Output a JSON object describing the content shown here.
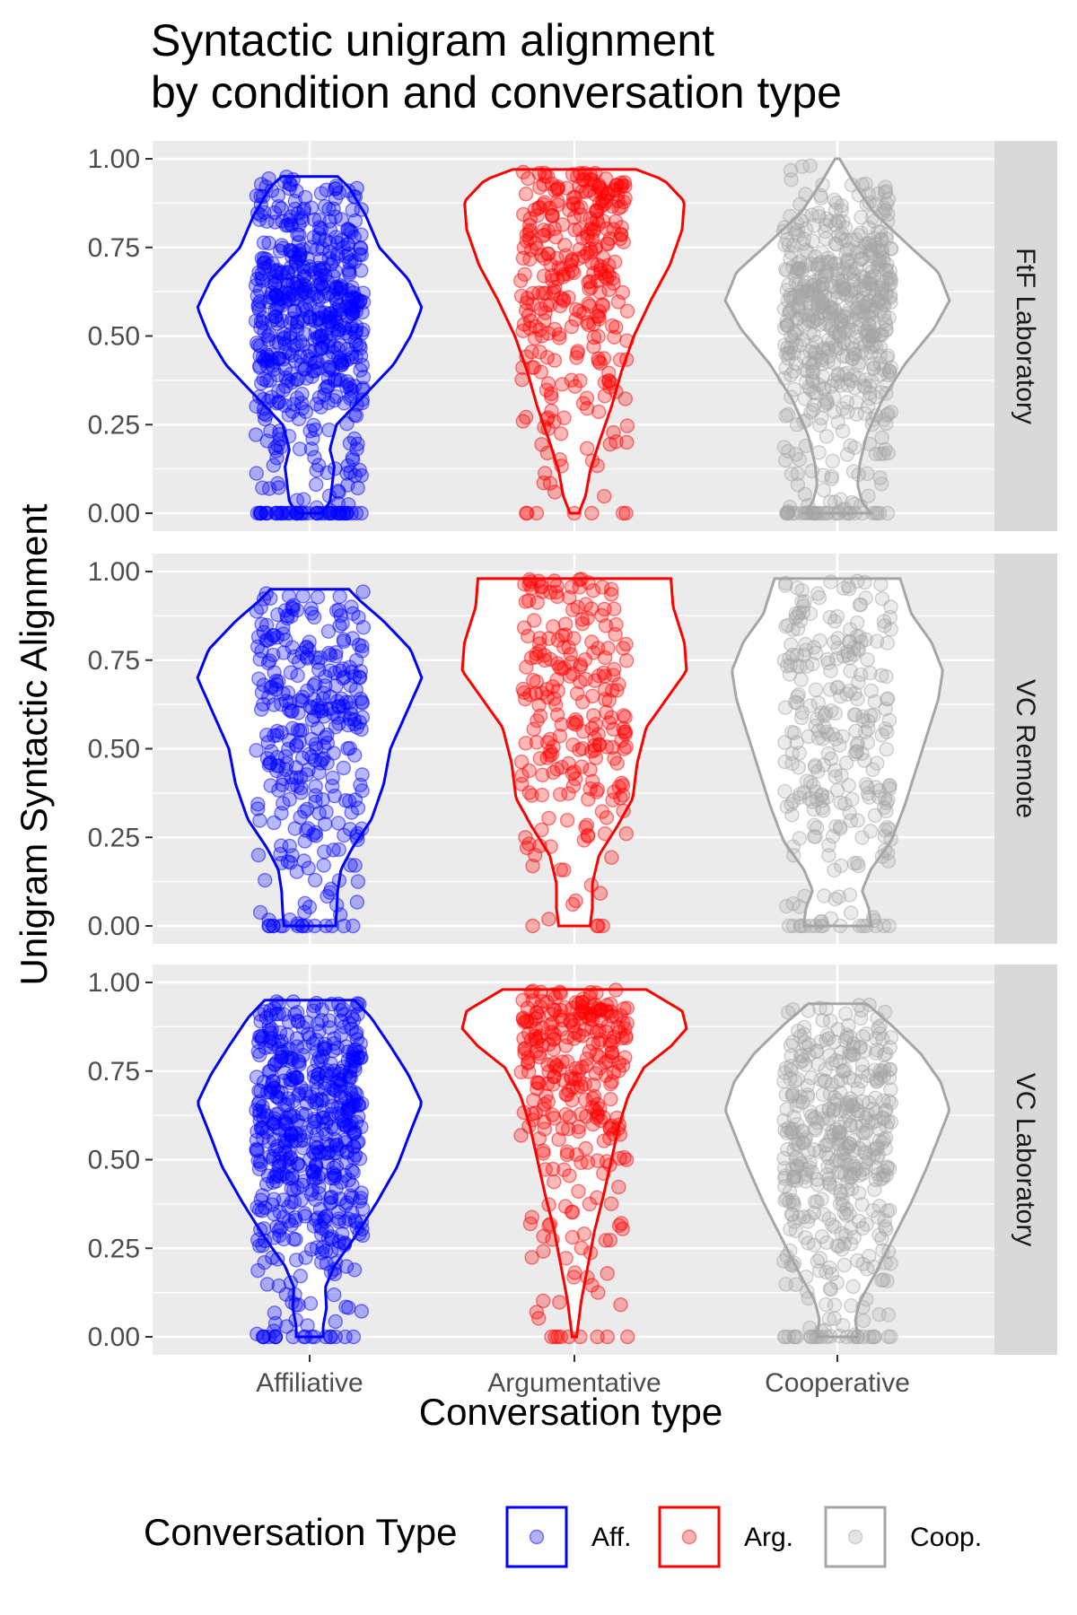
{
  "chart_data": {
    "type": "violin",
    "title": "Syntactic unigram alignment\nby condition and conversation type",
    "title_lines": [
      "Syntactic unigram alignment",
      "by condition and conversation type"
    ],
    "xlabel": "Conversation type",
    "ylabel": "Unigram Syntactic Alignment",
    "ylim": [
      0,
      1
    ],
    "y_ticks": [
      "0.00",
      "0.25",
      "0.50",
      "0.75",
      "1.00"
    ],
    "y_tick_values": [
      0,
      0.25,
      0.5,
      0.75,
      1.0
    ],
    "categories": [
      "Affiliative",
      "Argumentative",
      "Cooperative"
    ],
    "grid": true,
    "legend": {
      "title": "Conversation Type",
      "position": "bottom",
      "entries": [
        {
          "label": "Aff.",
          "color": "#0000ff"
        },
        {
          "label": "Arg.",
          "color": "#ff0000"
        },
        {
          "label": "Coop.",
          "color": "#a6a6a6"
        }
      ]
    },
    "panels": [
      {
        "facet": "FtF Laboratory",
        "violins": [
          {
            "category": "Affiliative",
            "color": "#0000ff",
            "y_min": 0.0,
            "y_max": 0.95,
            "profile": [
              [
                0.0,
                0.1
              ],
              [
                0.03,
                0.18
              ],
              [
                0.08,
                0.2
              ],
              [
                0.13,
                0.22
              ],
              [
                0.18,
                0.18
              ],
              [
                0.25,
                0.24
              ],
              [
                0.33,
                0.48
              ],
              [
                0.42,
                0.75
              ],
              [
                0.5,
                0.9
              ],
              [
                0.58,
                1.0
              ],
              [
                0.66,
                0.88
              ],
              [
                0.75,
                0.62
              ],
              [
                0.84,
                0.5
              ],
              [
                0.92,
                0.35
              ],
              [
                0.95,
                0.25
              ]
            ],
            "n_points": 600,
            "zero_share": 0.06
          },
          {
            "category": "Argumentative",
            "color": "#ff0000",
            "y_min": 0.0,
            "y_max": 0.97,
            "profile": [
              [
                0.0,
                0.04
              ],
              [
                0.05,
                0.1
              ],
              [
                0.12,
                0.14
              ],
              [
                0.2,
                0.22
              ],
              [
                0.3,
                0.33
              ],
              [
                0.4,
                0.42
              ],
              [
                0.5,
                0.53
              ],
              [
                0.6,
                0.68
              ],
              [
                0.7,
                0.85
              ],
              [
                0.8,
                0.96
              ],
              [
                0.88,
                0.98
              ],
              [
                0.94,
                0.8
              ],
              [
                0.97,
                0.55
              ]
            ],
            "n_points": 320,
            "zero_share": 0.02
          },
          {
            "category": "Cooperative",
            "color": "#a6a6a6",
            "y_min": 0.0,
            "y_max": 1.0,
            "profile": [
              [
                0.0,
                0.3
              ],
              [
                0.03,
                0.22
              ],
              [
                0.08,
                0.18
              ],
              [
                0.14,
                0.2
              ],
              [
                0.22,
                0.26
              ],
              [
                0.32,
                0.4
              ],
              [
                0.42,
                0.6
              ],
              [
                0.52,
                0.86
              ],
              [
                0.6,
                1.0
              ],
              [
                0.68,
                0.9
              ],
              [
                0.76,
                0.62
              ],
              [
                0.85,
                0.32
              ],
              [
                0.93,
                0.15
              ],
              [
                1.0,
                0.02
              ]
            ],
            "n_points": 620,
            "zero_share": 0.05
          }
        ]
      },
      {
        "facet": "VC Remote",
        "violins": [
          {
            "category": "Affiliative",
            "color": "#0000ff",
            "y_min": 0.0,
            "y_max": 0.95,
            "profile": [
              [
                0.0,
                0.23
              ],
              [
                0.04,
                0.24
              ],
              [
                0.1,
                0.25
              ],
              [
                0.16,
                0.28
              ],
              [
                0.22,
                0.38
              ],
              [
                0.3,
                0.55
              ],
              [
                0.4,
                0.66
              ],
              [
                0.5,
                0.72
              ],
              [
                0.6,
                0.86
              ],
              [
                0.7,
                1.0
              ],
              [
                0.78,
                0.9
              ],
              [
                0.86,
                0.66
              ],
              [
                0.92,
                0.44
              ],
              [
                0.95,
                0.35
              ]
            ],
            "n_points": 320,
            "zero_share": 0.06
          },
          {
            "category": "Argumentative",
            "color": "#ff0000",
            "y_min": 0.0,
            "y_max": 0.98,
            "profile": [
              [
                0.0,
                0.14
              ],
              [
                0.05,
                0.16
              ],
              [
                0.12,
                0.16
              ],
              [
                0.2,
                0.22
              ],
              [
                0.28,
                0.38
              ],
              [
                0.36,
                0.52
              ],
              [
                0.46,
                0.56
              ],
              [
                0.56,
                0.64
              ],
              [
                0.64,
                0.82
              ],
              [
                0.72,
                1.0
              ],
              [
                0.8,
                0.98
              ],
              [
                0.9,
                0.88
              ],
              [
                0.98,
                0.86
              ]
            ],
            "n_points": 230,
            "zero_share": 0.03
          },
          {
            "category": "Cooperative",
            "color": "#a6a6a6",
            "y_min": 0.0,
            "y_max": 0.98,
            "profile": [
              [
                0.0,
                0.3
              ],
              [
                0.05,
                0.28
              ],
              [
                0.1,
                0.22
              ],
              [
                0.16,
                0.3
              ],
              [
                0.24,
                0.48
              ],
              [
                0.34,
                0.6
              ],
              [
                0.44,
                0.7
              ],
              [
                0.54,
                0.8
              ],
              [
                0.64,
                0.9
              ],
              [
                0.72,
                0.94
              ],
              [
                0.8,
                0.84
              ],
              [
                0.88,
                0.66
              ],
              [
                0.94,
                0.6
              ],
              [
                0.98,
                0.56
              ]
            ],
            "n_points": 280,
            "zero_share": 0.06
          }
        ]
      },
      {
        "facet": "VC Laboratory",
        "violins": [
          {
            "category": "Affiliative",
            "color": "#0000ff",
            "y_min": 0.0,
            "y_max": 0.95,
            "profile": [
              [
                0.0,
                0.12
              ],
              [
                0.03,
                0.12
              ],
              [
                0.08,
                0.15
              ],
              [
                0.14,
                0.14
              ],
              [
                0.2,
                0.22
              ],
              [
                0.28,
                0.4
              ],
              [
                0.38,
                0.6
              ],
              [
                0.48,
                0.78
              ],
              [
                0.58,
                0.9
              ],
              [
                0.66,
                1.0
              ],
              [
                0.74,
                0.88
              ],
              [
                0.82,
                0.72
              ],
              [
                0.9,
                0.55
              ],
              [
                0.95,
                0.4
              ]
            ],
            "n_points": 560,
            "zero_share": 0.05
          },
          {
            "category": "Argumentative",
            "color": "#ff0000",
            "y_min": 0.0,
            "y_max": 0.98,
            "profile": [
              [
                0.0,
                0.02
              ],
              [
                0.1,
                0.06
              ],
              [
                0.2,
                0.12
              ],
              [
                0.3,
                0.18
              ],
              [
                0.4,
                0.26
              ],
              [
                0.5,
                0.33
              ],
              [
                0.6,
                0.4
              ],
              [
                0.68,
                0.48
              ],
              [
                0.76,
                0.62
              ],
              [
                0.82,
                0.86
              ],
              [
                0.87,
                1.0
              ],
              [
                0.92,
                0.96
              ],
              [
                0.98,
                0.64
              ]
            ],
            "n_points": 300,
            "zero_share": 0.02
          },
          {
            "category": "Cooperative",
            "color": "#a6a6a6",
            "y_min": 0.0,
            "y_max": 0.94,
            "profile": [
              [
                0.0,
                0.18
              ],
              [
                0.05,
                0.16
              ],
              [
                0.1,
                0.2
              ],
              [
                0.18,
                0.34
              ],
              [
                0.28,
                0.5
              ],
              [
                0.38,
                0.66
              ],
              [
                0.48,
                0.8
              ],
              [
                0.56,
                0.9
              ],
              [
                0.64,
                1.0
              ],
              [
                0.72,
                0.92
              ],
              [
                0.8,
                0.74
              ],
              [
                0.88,
                0.48
              ],
              [
                0.94,
                0.26
              ]
            ],
            "n_points": 460,
            "zero_share": 0.05
          }
        ]
      }
    ]
  }
}
